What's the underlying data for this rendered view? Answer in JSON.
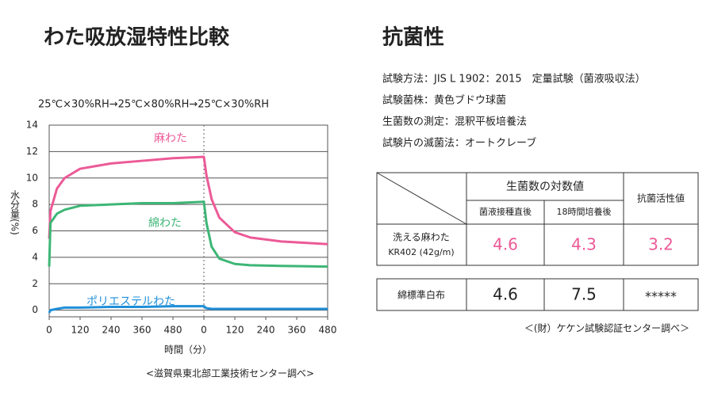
{
  "chart_data": {
    "type": "line",
    "title": "わた吸放湿特性比較",
    "subtitle": "25℃×30%RH→25℃×80%RH→25℃×30%RH",
    "y_label": "水分量(%)",
    "x_label": "時間（分）",
    "source": "<滋賀県東北部工業技術センター調べ>",
    "x": [
      0,
      5,
      30,
      60,
      120,
      240,
      360,
      480,
      600,
      610,
      630,
      660,
      720,
      780,
      900,
      1080
    ],
    "series": [
      {
        "name": "麻わた",
        "color": "#ec5a97",
        "values": [
          5.4,
          7.5,
          9.2,
          10.0,
          10.7,
          11.1,
          11.3,
          11.5,
          11.6,
          10.2,
          8.4,
          7.0,
          5.9,
          5.5,
          5.2,
          5.0
        ]
      },
      {
        "name": "綿わた",
        "color": "#3db676",
        "values": [
          3.3,
          6.6,
          7.3,
          7.6,
          7.9,
          8.0,
          8.1,
          8.1,
          8.2,
          6.6,
          4.8,
          3.9,
          3.5,
          3.4,
          3.35,
          3.3
        ]
      },
      {
        "name": "ポリエステルわた",
        "color": "#1f8fd8",
        "values": [
          -0.2,
          0.0,
          0.1,
          0.2,
          0.2,
          0.25,
          0.25,
          0.3,
          0.3,
          0.15,
          0.1,
          0.1,
          0.1,
          0.1,
          0.1,
          0.1
        ]
      }
    ],
    "xlim": [
      0,
      1080
    ],
    "xticks": [
      0,
      120,
      240,
      360,
      480,
      {
        "value": 600,
        "label": "0"
      },
      {
        "value": 720,
        "label": "120"
      },
      {
        "value": 840,
        "label": "240"
      },
      {
        "value": 960,
        "label": "360"
      },
      {
        "value": 1080,
        "label": "480"
      }
    ],
    "ylim": [
      -0.5,
      14
    ],
    "yticks": [
      0,
      2,
      4,
      6,
      8,
      10,
      12,
      14
    ],
    "grid": true
  },
  "antibacterial": {
    "title": "抗菌性",
    "lines": [
      "試験方法：JIS L 1902：2015　定量試験（菌液吸収法）",
      "試験菌株：黄色ブドウ球菌",
      "生菌数の測定：混釈平板培養法",
      "試験片の滅菌法：オートクレーブ"
    ],
    "table": {
      "group_header": "生菌数の対数値",
      "sub_headers": [
        "菌液接種直後",
        "18時間培養後"
      ],
      "activity_header": "抗菌活性値",
      "rows": [
        {
          "label": [
            "洗える麻わた",
            "KR402 (42g/m)"
          ],
          "cells": [
            "4.6",
            "4.3",
            "3.2"
          ]
        },
        {
          "label": [
            "綿標準白布"
          ],
          "cells": [
            "4.6",
            "7.5",
            "*****"
          ]
        }
      ]
    },
    "note": "＜(財）ケケン試験認証センター調べ＞"
  }
}
